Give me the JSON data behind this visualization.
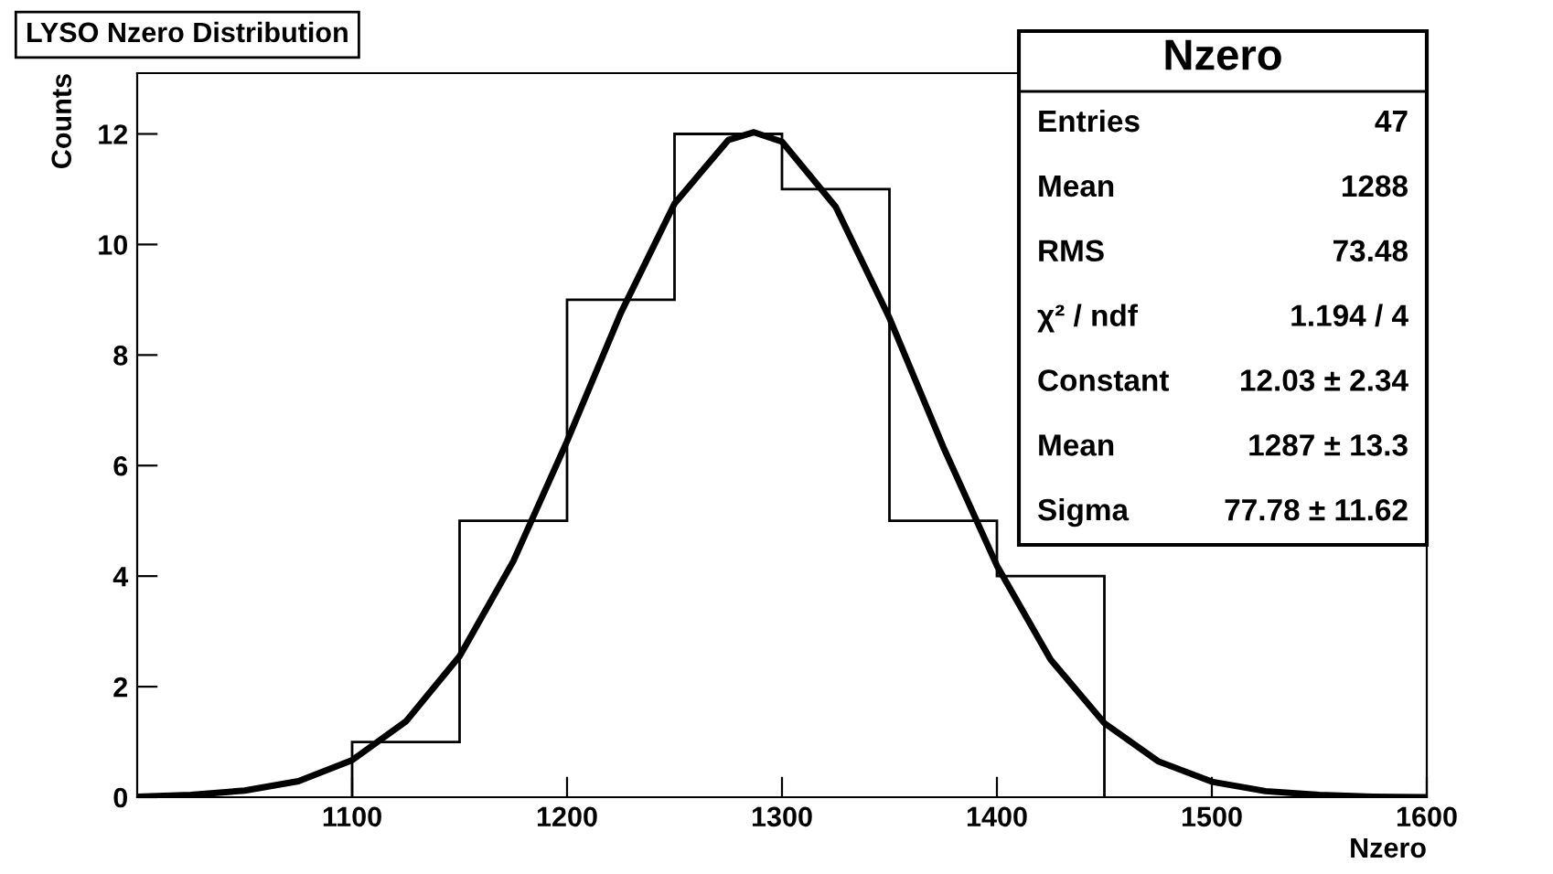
{
  "chart_data": {
    "type": "histogram",
    "title": "LYSO Nzero Distribution",
    "xlabel": "Nzero",
    "ylabel": "Counts",
    "bins": [
      1100,
      1150,
      1200,
      1250,
      1300,
      1350,
      1400,
      1450
    ],
    "values": [
      1,
      5,
      9,
      12,
      11,
      5,
      4
    ],
    "color": "#000000",
    "series": [
      {
        "type": "line",
        "color": "#000000",
        "x": [
          1000,
          1025,
          1050,
          1075,
          1100,
          1125,
          1150,
          1175,
          1200,
          1225,
          1250,
          1275,
          1287,
          1300,
          1325,
          1350,
          1375,
          1400,
          1425,
          1450,
          1475,
          1500,
          1525,
          1550,
          1575,
          1600
        ],
        "values": [
          0.01,
          0.04,
          0.12,
          0.29,
          0.67,
          1.37,
          2.55,
          4.27,
          6.44,
          8.76,
          10.74,
          11.89,
          12.03,
          11.86,
          10.68,
          8.67,
          6.34,
          4.19,
          2.49,
          1.34,
          0.65,
          0.28,
          0.11,
          0.04,
          0.01,
          0.0
        ]
      }
    ],
    "xlim": [
      1000,
      1600
    ],
    "xticks": [
      1100,
      1200,
      1300,
      1400,
      1500,
      1600
    ],
    "ylim": [
      0,
      13.1
    ],
    "yticks": [
      0,
      2,
      4,
      6,
      8,
      10,
      12
    ],
    "grid": false,
    "annotations": [
      "Nzero",
      "Entries",
      "47",
      "Mean",
      "1288",
      "RMS",
      "73.48",
      "χ² / ndf",
      "1.194 / 4",
      "Constant",
      "12.03 ± 2.34",
      "Mean",
      "1287 ± 13.3",
      "Sigma",
      "77.78 ± 11.62"
    ]
  }
}
